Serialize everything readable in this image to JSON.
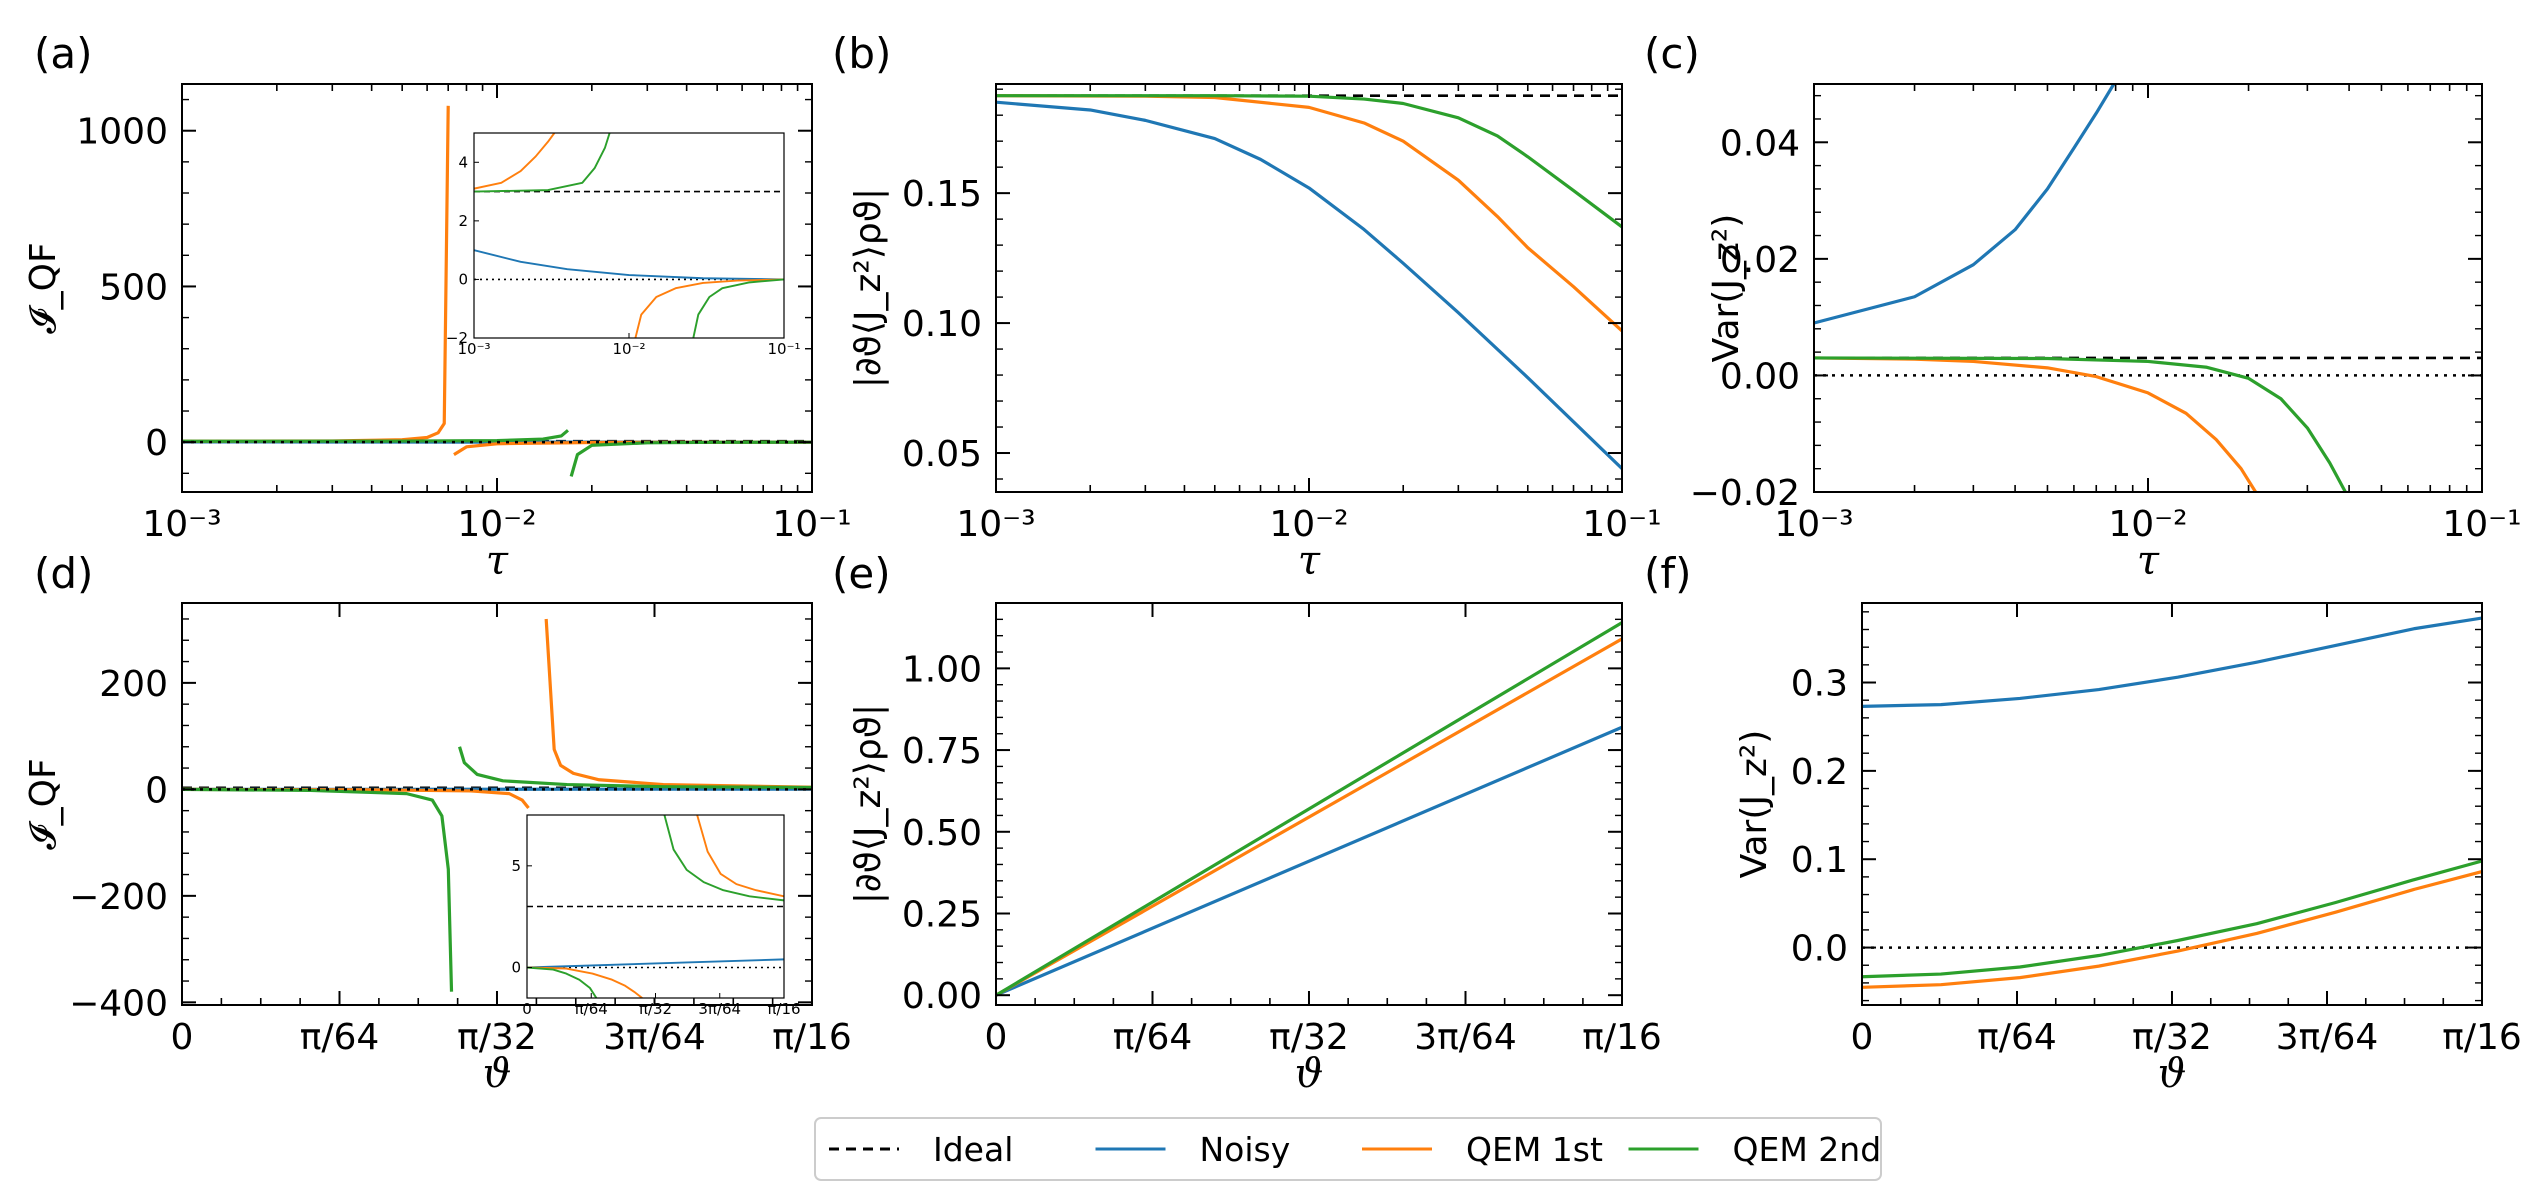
{
  "legend": {
    "entries": [
      {
        "label": "Ideal",
        "color": "#000000",
        "dash": "dashed"
      },
      {
        "label": "Noisy",
        "color": "#1f77b4",
        "dash": "solid"
      },
      {
        "label": "QEM 1st",
        "color": "#ff7f0e",
        "dash": "solid"
      },
      {
        "label": "QEM 2nd",
        "color": "#2ca02c",
        "dash": "solid"
      }
    ],
    "placement": "bottom-center"
  },
  "chart_data": [
    {
      "id": "a",
      "panel_label": "(a)",
      "type": "line",
      "xscale": "log",
      "xlim": [
        0.001,
        0.1
      ],
      "ylim": [
        -160,
        1150
      ],
      "xlabel": "τ",
      "ylabel": "𝓘_QF",
      "xticks": [
        0.001,
        0.01,
        0.1
      ],
      "xtick_labels": [
        "10⁻³",
        "10⁻²",
        "10⁻¹"
      ],
      "yticks": [
        0,
        500,
        1000
      ],
      "ytick_labels": [
        "0",
        "500",
        "1000"
      ],
      "series": [
        {
          "name": "Ideal",
          "x": [
            0.001,
            0.1
          ],
          "y": [
            3,
            3
          ]
        },
        {
          "name": "Noisy",
          "x": [
            0.001,
            0.003,
            0.01,
            0.03,
            0.1
          ],
          "y": [
            1,
            0.5,
            0.2,
            0.05,
            0
          ]
        },
        {
          "name": "QEM 1st",
          "x": [
            0.001,
            0.003,
            0.005,
            0.006,
            0.0065,
            0.0068,
            0.007
          ],
          "y": [
            3,
            4,
            8,
            15,
            30,
            60,
            1080
          ]
        },
        {
          "name": "QEM 1st",
          "x": [
            0.0073,
            0.008,
            0.01,
            0.02,
            0.05,
            0.1
          ],
          "y": [
            -40,
            -15,
            -5,
            -1,
            -0.2,
            0
          ]
        },
        {
          "name": "QEM 2nd",
          "x": [
            0.001,
            0.005,
            0.01,
            0.014,
            0.016,
            0.0168
          ],
          "y": [
            3,
            3.5,
            5,
            10,
            20,
            38
          ]
        },
        {
          "name": "QEM 2nd",
          "x": [
            0.0172,
            0.018,
            0.02,
            0.03,
            0.05,
            0.1
          ],
          "y": [
            -110,
            -40,
            -10,
            -2,
            -0.4,
            0
          ]
        },
        {
          "name": "Reference",
          "x": [
            0.001,
            0.1
          ],
          "y": [
            0,
            0
          ],
          "style": "dotted"
        }
      ],
      "inset": {
        "xscale": "log",
        "xlim": [
          0.001,
          0.1
        ],
        "ylim": [
          -2,
          5
        ],
        "xtick_labels": [
          "10⁻³",
          "10⁻²",
          "10⁻¹"
        ],
        "ytick_labels": [
          "−2",
          "0",
          "2",
          "4"
        ],
        "series": [
          {
            "name": "Ideal",
            "x": [
              0.001,
              0.1
            ],
            "y": [
              3,
              3
            ]
          },
          {
            "name": "Reference",
            "x": [
              0.001,
              0.1
            ],
            "y": [
              0,
              0
            ],
            "style": "dotted"
          },
          {
            "name": "Noisy",
            "x": [
              0.001,
              0.002,
              0.004,
              0.01,
              0.03,
              0.1
            ],
            "y": [
              1.0,
              0.6,
              0.35,
              0.15,
              0.04,
              0
            ]
          },
          {
            "name": "QEM 1st",
            "x": [
              0.001,
              0.0015,
              0.002,
              0.0025,
              0.003,
              0.0033
            ],
            "y": [
              3.1,
              3.3,
              3.7,
              4.2,
              4.7,
              5
            ]
          },
          {
            "name": "QEM 2nd",
            "x": [
              0.001,
              0.003,
              0.005,
              0.006,
              0.007,
              0.0075
            ],
            "y": [
              3,
              3.05,
              3.3,
              3.8,
              4.5,
              5
            ]
          },
          {
            "name": "QEM 1st",
            "x": [
              0.011,
              0.012,
              0.015,
              0.02,
              0.03,
              0.05,
              0.1
            ],
            "y": [
              -2,
              -1.2,
              -0.6,
              -0.3,
              -0.12,
              -0.04,
              0
            ]
          },
          {
            "name": "QEM 2nd",
            "x": [
              0.026,
              0.028,
              0.033,
              0.04,
              0.06,
              0.1
            ],
            "y": [
              -2,
              -1.2,
              -0.6,
              -0.3,
              -0.1,
              0
            ]
          }
        ]
      }
    },
    {
      "id": "b",
      "panel_label": "(b)",
      "type": "line",
      "xscale": "log",
      "xlim": [
        0.001,
        0.1
      ],
      "ylim": [
        0.035,
        0.192
      ],
      "xlabel": "τ",
      "ylabel": "|∂ϑ⟨J_z²⟩ρϑ|",
      "xticks": [
        0.001,
        0.01,
        0.1
      ],
      "xtick_labels": [
        "10⁻³",
        "10⁻²",
        "10⁻¹"
      ],
      "yticks": [
        0.05,
        0.1,
        0.15
      ],
      "ytick_labels": [
        "0.05",
        "0.10",
        "0.15"
      ],
      "series": [
        {
          "name": "Ideal",
          "x": [
            0.001,
            0.1
          ],
          "y": [
            0.1875,
            0.1875
          ]
        },
        {
          "name": "Noisy",
          "x": [
            0.001,
            0.002,
            0.003,
            0.005,
            0.007,
            0.01,
            0.015,
            0.02,
            0.03,
            0.05,
            0.07,
            0.1
          ],
          "y": [
            0.185,
            0.182,
            0.178,
            0.171,
            0.163,
            0.152,
            0.136,
            0.123,
            0.104,
            0.079,
            0.062,
            0.044
          ]
        },
        {
          "name": "QEM 1st",
          "x": [
            0.001,
            0.003,
            0.005,
            0.01,
            0.015,
            0.02,
            0.03,
            0.04,
            0.05,
            0.07,
            0.1
          ],
          "y": [
            0.1875,
            0.1873,
            0.1868,
            0.183,
            0.177,
            0.17,
            0.155,
            0.141,
            0.129,
            0.114,
            0.097
          ]
        },
        {
          "name": "QEM 2nd",
          "x": [
            0.001,
            0.005,
            0.01,
            0.015,
            0.02,
            0.03,
            0.04,
            0.05,
            0.07,
            0.1
          ],
          "y": [
            0.1875,
            0.1875,
            0.1873,
            0.1862,
            0.1845,
            0.179,
            0.172,
            0.164,
            0.151,
            0.137
          ]
        }
      ]
    },
    {
      "id": "c",
      "panel_label": "(c)",
      "type": "line",
      "xscale": "log",
      "xlim": [
        0.001,
        0.1
      ],
      "ylim": [
        -0.02,
        0.05
      ],
      "xlabel": "τ",
      "ylabel": "Var(J_z²)",
      "xticks": [
        0.001,
        0.01,
        0.1
      ],
      "xtick_labels": [
        "10⁻³",
        "10⁻²",
        "10⁻¹"
      ],
      "yticks": [
        -0.02,
        0,
        0.02,
        0.04
      ],
      "ytick_labels": [
        "−0.02",
        "0.00",
        "0.02",
        "0.04"
      ],
      "series": [
        {
          "name": "Ideal",
          "x": [
            0.001,
            0.1
          ],
          "y": [
            0.003,
            0.003
          ]
        },
        {
          "name": "Reference",
          "x": [
            0.001,
            0.1
          ],
          "y": [
            0,
            0
          ],
          "style": "dotted"
        },
        {
          "name": "Noisy",
          "x": [
            0.001,
            0.002,
            0.003,
            0.004,
            0.005,
            0.006,
            0.007,
            0.0079
          ],
          "y": [
            0.009,
            0.0135,
            0.019,
            0.025,
            0.032,
            0.039,
            0.045,
            0.05
          ]
        },
        {
          "name": "QEM 1st",
          "x": [
            0.001,
            0.002,
            0.003,
            0.005,
            0.007,
            0.01,
            0.013,
            0.016,
            0.019,
            0.021
          ],
          "y": [
            0.003,
            0.0028,
            0.0024,
            0.0013,
            -0.0002,
            -0.003,
            -0.0065,
            -0.011,
            -0.016,
            -0.02
          ]
        },
        {
          "name": "QEM 2nd",
          "x": [
            0.001,
            0.005,
            0.01,
            0.015,
            0.02,
            0.025,
            0.03,
            0.035,
            0.039
          ],
          "y": [
            0.003,
            0.0029,
            0.0024,
            0.0014,
            -0.0005,
            -0.004,
            -0.009,
            -0.015,
            -0.02
          ]
        }
      ]
    },
    {
      "id": "d",
      "panel_label": "(d)",
      "type": "line",
      "xscale": "linear",
      "xlim": [
        0,
        0.19635
      ],
      "ylim": [
        -405,
        350
      ],
      "xlabel": "ϑ",
      "ylabel": "𝓘_QF",
      "xticks": [
        0,
        0.04909,
        0.09817,
        0.14726,
        0.19635
      ],
      "xtick_labels": [
        "0",
        "π/64",
        "π/32",
        "3π/64",
        "π/16"
      ],
      "yticks": [
        -400,
        -200,
        0,
        200
      ],
      "ytick_labels": [
        "−400",
        "−200",
        "0",
        "200"
      ],
      "series": [
        {
          "name": "Ideal",
          "x": [
            0,
            0.19635
          ],
          "y": [
            3,
            3
          ]
        },
        {
          "name": "Noisy",
          "x": [
            0,
            0.19635
          ],
          "y": [
            0,
            0.4
          ]
        },
        {
          "name": "QEM 1st",
          "x": [
            0,
            0.06,
            0.09,
            0.102,
            0.106,
            0.108
          ],
          "y": [
            0,
            -1,
            -3,
            -8,
            -20,
            -35
          ]
        },
        {
          "name": "QEM 1st",
          "x": [
            0.1135,
            0.116,
            0.118,
            0.122,
            0.13,
            0.15,
            0.19635
          ],
          "y": [
            320,
            75,
            45,
            30,
            18,
            9,
            4
          ]
        },
        {
          "name": "QEM 2nd",
          "x": [
            0,
            0.04,
            0.07,
            0.078,
            0.081,
            0.083,
            0.084
          ],
          "y": [
            0,
            -2,
            -8,
            -20,
            -50,
            -150,
            -380
          ]
        },
        {
          "name": "QEM 2nd",
          "x": [
            0.0865,
            0.088,
            0.092,
            0.1,
            0.12,
            0.15,
            0.19635
          ],
          "y": [
            80,
            50,
            28,
            16,
            9,
            5,
            3.5
          ]
        },
        {
          "name": "Reference",
          "x": [
            0,
            0.19635
          ],
          "y": [
            0,
            0
          ],
          "style": "dotted"
        }
      ],
      "inset": {
        "xscale": "linear",
        "xlim": [
          0,
          0.19635
        ],
        "ylim": [
          -1.5,
          7.5
        ],
        "xtick_labels": [
          "0",
          "π/64",
          "π/32",
          "3π/64",
          "π/16"
        ],
        "ytick_labels": [
          "0",
          "5"
        ],
        "series": [
          {
            "name": "Ideal",
            "x": [
              0,
              0.19635
            ],
            "y": [
              3,
              3
            ]
          },
          {
            "name": "Reference",
            "x": [
              0,
              0.19635
            ],
            "y": [
              0,
              0
            ],
            "style": "dotted"
          },
          {
            "name": "Noisy",
            "x": [
              0,
              0.19635
            ],
            "y": [
              0,
              0.4
            ]
          },
          {
            "name": "QEM 1st",
            "x": [
              0,
              0.03,
              0.05,
              0.065,
              0.075,
              0.082,
              0.088
            ],
            "y": [
              0,
              -0.05,
              -0.3,
              -0.6,
              -0.9,
              -1.2,
              -1.5
            ]
          },
          {
            "name": "QEM 2nd",
            "x": [
              0,
              0.02,
              0.03,
              0.04,
              0.048,
              0.053
            ],
            "y": [
              0,
              -0.1,
              -0.3,
              -0.6,
              -1.0,
              -1.5
            ]
          },
          {
            "name": "QEM 1st",
            "x": [
              0.13,
              0.138,
              0.148,
              0.16,
              0.175,
              0.19635
            ],
            "y": [
              7.5,
              5.7,
              4.6,
              4.1,
              3.8,
              3.5
            ]
          },
          {
            "name": "QEM 2nd",
            "x": [
              0.105,
              0.112,
              0.122,
              0.135,
              0.15,
              0.17,
              0.19635
            ],
            "y": [
              7.5,
              5.8,
              4.8,
              4.2,
              3.8,
              3.5,
              3.3
            ]
          }
        ]
      }
    },
    {
      "id": "e",
      "panel_label": "(e)",
      "type": "line",
      "xscale": "linear",
      "xlim": [
        0,
        0.19635
      ],
      "ylim": [
        -0.03,
        1.2
      ],
      "xlabel": "ϑ",
      "ylabel": "|∂ϑ⟨J_z²⟩ρϑ|",
      "xticks": [
        0,
        0.04909,
        0.09817,
        0.14726,
        0.19635
      ],
      "xtick_labels": [
        "0",
        "π/64",
        "π/32",
        "3π/64",
        "π/16"
      ],
      "yticks": [
        0,
        0.25,
        0.5,
        0.75,
        1.0
      ],
      "ytick_labels": [
        "0.00",
        "0.25",
        "0.50",
        "0.75",
        "1.00"
      ],
      "series": [
        {
          "name": "Ideal",
          "x": [
            0,
            0.19635
          ],
          "y": [
            0,
            1.14
          ]
        },
        {
          "name": "Noisy",
          "x": [
            0,
            0.19635
          ],
          "y": [
            0,
            0.82
          ]
        },
        {
          "name": "QEM 1st",
          "x": [
            0,
            0.19635
          ],
          "y": [
            0,
            1.09
          ]
        },
        {
          "name": "QEM 2nd",
          "x": [
            0,
            0.19635
          ],
          "y": [
            0,
            1.14
          ]
        }
      ]
    },
    {
      "id": "f",
      "panel_label": "(f)",
      "type": "line",
      "xscale": "linear",
      "xlim": [
        0,
        0.19635
      ],
      "ylim": [
        -0.065,
        0.39
      ],
      "xlabel": "ϑ",
      "ylabel": "Var(J_z²)",
      "xticks": [
        0,
        0.04909,
        0.09817,
        0.14726,
        0.19635
      ],
      "xtick_labels": [
        "0",
        "π/64",
        "π/32",
        "3π/64",
        "π/16"
      ],
      "yticks": [
        0,
        0.1,
        0.2,
        0.3
      ],
      "ytick_labels": [
        "0.0",
        "0.1",
        "0.2",
        "0.3"
      ],
      "series": [
        {
          "name": "Reference",
          "x": [
            0,
            0.19635
          ],
          "y": [
            0,
            0
          ],
          "style": "dotted"
        },
        {
          "name": "Noisy",
          "x": [
            0,
            0.025,
            0.05,
            0.075,
            0.1,
            0.125,
            0.15,
            0.175,
            0.19635
          ],
          "y": [
            0.273,
            0.275,
            0.282,
            0.292,
            0.306,
            0.323,
            0.342,
            0.361,
            0.373
          ]
        },
        {
          "name": "QEM 1st",
          "x": [
            0,
            0.025,
            0.05,
            0.075,
            0.1,
            0.125,
            0.15,
            0.175,
            0.19635
          ],
          "y": [
            -0.045,
            -0.042,
            -0.034,
            -0.021,
            -0.004,
            0.016,
            0.04,
            0.066,
            0.086
          ]
        },
        {
          "name": "QEM 2nd",
          "x": [
            0,
            0.025,
            0.05,
            0.075,
            0.1,
            0.125,
            0.15,
            0.175,
            0.19635
          ],
          "y": [
            -0.033,
            -0.03,
            -0.022,
            -0.009,
            0.008,
            0.027,
            0.051,
            0.077,
            0.098
          ]
        }
      ]
    }
  ]
}
